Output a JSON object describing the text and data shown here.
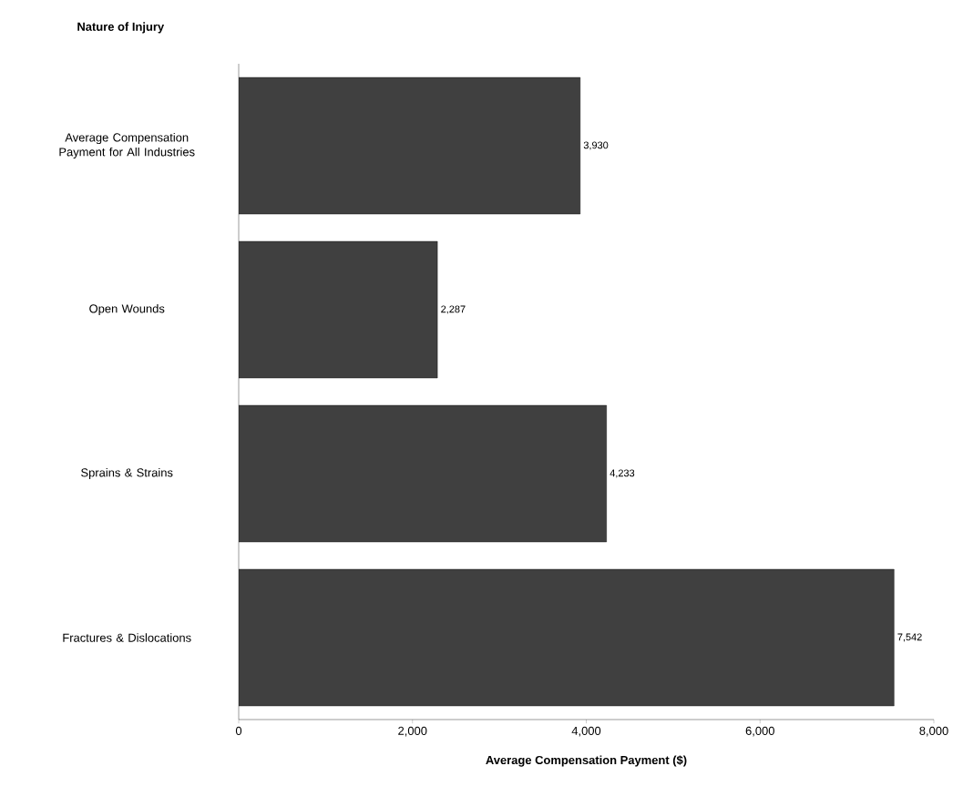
{
  "chart_data": {
    "type": "bar",
    "orientation": "horizontal",
    "ylabel": "Nature of Injury",
    "xlabel": "Average Compensation Payment ($)",
    "categories": [
      "Average Compensation Payment for All Industries",
      "Open Wounds",
      "Sprains & Strains",
      "Fractures & Dislocations"
    ],
    "values": [
      3930,
      2287,
      4233,
      7542
    ],
    "value_labels": [
      "3,930",
      "2,287",
      "4,233",
      "7,542"
    ],
    "color": "#404040",
    "xlim": [
      0,
      8000
    ],
    "xticks": [
      0,
      {
        "value": 2000,
        "label": "2,000"
      },
      {
        "value": 4000,
        "label": "4,000"
      },
      {
        "value": 6000,
        "label": "6,000"
      },
      {
        "value": 8000,
        "label": "8,000"
      }
    ]
  }
}
